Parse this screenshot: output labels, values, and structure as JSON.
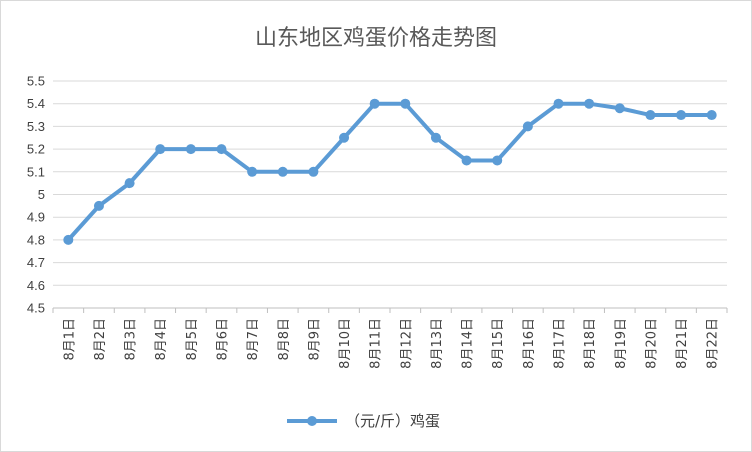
{
  "chart_data": {
    "type": "line",
    "title": "山东地区鸡蛋价格走势图",
    "xlabel": "",
    "ylabel": "",
    "categories": [
      "8月1日",
      "8月2日",
      "8月3日",
      "8月4日",
      "8月5日",
      "8月6日",
      "8月7日",
      "8月8日",
      "8月9日",
      "8月10日",
      "8月11日",
      "8月12日",
      "8月13日",
      "8月14日",
      "8月15日",
      "8月16日",
      "8月17日",
      "8月18日",
      "8月19日",
      "8月20日",
      "8月21日",
      "8月22日"
    ],
    "yticks": [
      "4.5",
      "4.6",
      "4.7",
      "4.8",
      "4.9",
      "5",
      "5.1",
      "5.2",
      "5.3",
      "5.4",
      "5.5"
    ],
    "ylim": [
      4.5,
      5.5
    ],
    "grid": true,
    "legend_position": "bottom",
    "series": [
      {
        "name": "（元/斤）鸡蛋",
        "color": "#5b9bd5",
        "values": [
          4.8,
          4.95,
          5.05,
          5.2,
          5.2,
          5.2,
          5.1,
          5.1,
          5.1,
          5.25,
          5.4,
          5.4,
          5.25,
          5.15,
          5.15,
          5.3,
          5.4,
          5.4,
          5.38,
          5.35,
          5.35,
          5.35
        ]
      }
    ]
  }
}
